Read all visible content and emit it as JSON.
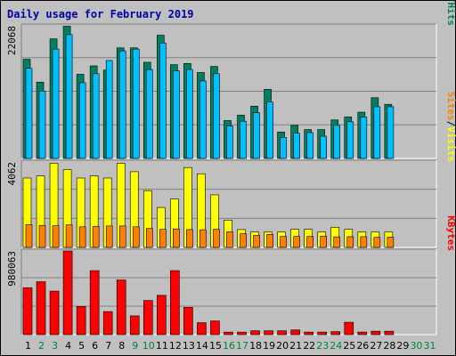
{
  "chart_data": {
    "type": "bar",
    "title": "Daily usage for February 2019",
    "x": [
      "1",
      "2",
      "3",
      "4",
      "5",
      "6",
      "7",
      "8",
      "9",
      "10",
      "11",
      "12",
      "13",
      "14",
      "15",
      "16",
      "17",
      "18",
      "19",
      "20",
      "21",
      "22",
      "23",
      "24",
      "25",
      "26",
      "27",
      "28",
      "29",
      "30",
      "31"
    ],
    "weekend_days": [
      2,
      3,
      9,
      10,
      16,
      17,
      23,
      24,
      30,
      31
    ],
    "panels": [
      {
        "max_label": "22068",
        "ylim": [
          0,
          22068
        ],
        "legend": [
          "Pages",
          "/",
          "Files",
          "/",
          "Hits"
        ],
        "series": [
          {
            "name": "Hits",
            "color": "#008060",
            "values": [
              16500,
              12700,
              19900,
              22000,
              14000,
              15400,
              14700,
              18400,
              18400,
              16000,
              20500,
              15600,
              15800,
              14300,
              15300,
              6300,
              7200,
              8700,
              11500,
              4400,
              5500,
              4800,
              4800,
              6400,
              6900,
              7700,
              10100,
              9000,
              0,
              0,
              0
            ]
          },
          {
            "name": "Files",
            "color": "#00c0ff",
            "values": [
              15000,
              11200,
              18200,
              20600,
              12600,
              14100,
              16300,
              17900,
              18200,
              14800,
              19200,
              14600,
              14800,
              12900,
              14100,
              5400,
              6200,
              7600,
              9400,
              3500,
              4200,
              4300,
              3700,
              5500,
              6100,
              6900,
              8600,
              8600,
              0,
              0,
              0
            ]
          },
          {
            "name": "Pages",
            "color": "#00d0d0",
            "values": [
              0,
              0,
              0,
              0,
              0,
              0,
              0,
              0,
              0,
              0,
              0,
              0,
              0,
              0,
              0,
              0,
              0,
              0,
              0,
              0,
              0,
              0,
              0,
              0,
              0,
              0,
              0,
              0,
              0,
              0,
              0
            ]
          }
        ]
      },
      {
        "max_label": "4062",
        "ylim": [
          0,
          4062
        ],
        "legend": [
          "Sites",
          "/",
          "Visits"
        ],
        "series": [
          {
            "name": "Visits",
            "color": "#ffff00",
            "values": [
              3300,
              3400,
              4000,
              3700,
              3300,
              3400,
              3300,
              4000,
              3600,
              2700,
              1900,
              2300,
              3800,
              3500,
              2500,
              1300,
              850,
              730,
              730,
              730,
              860,
              860,
              730,
              960,
              860,
              730,
              730,
              730,
              0,
              0,
              0
            ]
          },
          {
            "name": "Sites",
            "color": "#ff8000",
            "values": [
              1080,
              1050,
              1030,
              1070,
              980,
              1000,
              1020,
              1020,
              980,
              900,
              860,
              880,
              850,
              840,
              860,
              740,
              650,
              570,
              620,
              520,
              520,
              520,
              530,
              500,
              510,
              510,
              480,
              490,
              0,
              0,
              0
            ]
          }
        ]
      },
      {
        "max_label": "980063",
        "ylim": [
          0,
          980063
        ],
        "legend": [
          "KBytes"
        ],
        "series": [
          {
            "name": "KBytes",
            "color": "#ff0000",
            "values": [
              550000,
              620000,
              510000,
              980000,
              330000,
              750000,
              270000,
              640000,
              220000,
              400000,
              460000,
              750000,
              320000,
              140000,
              160000,
              30000,
              30000,
              45000,
              45000,
              45000,
              55000,
              30000,
              30000,
              35000,
              145000,
              30000,
              40000,
              40000,
              0,
              0,
              0
            ]
          }
        ]
      }
    ]
  }
}
